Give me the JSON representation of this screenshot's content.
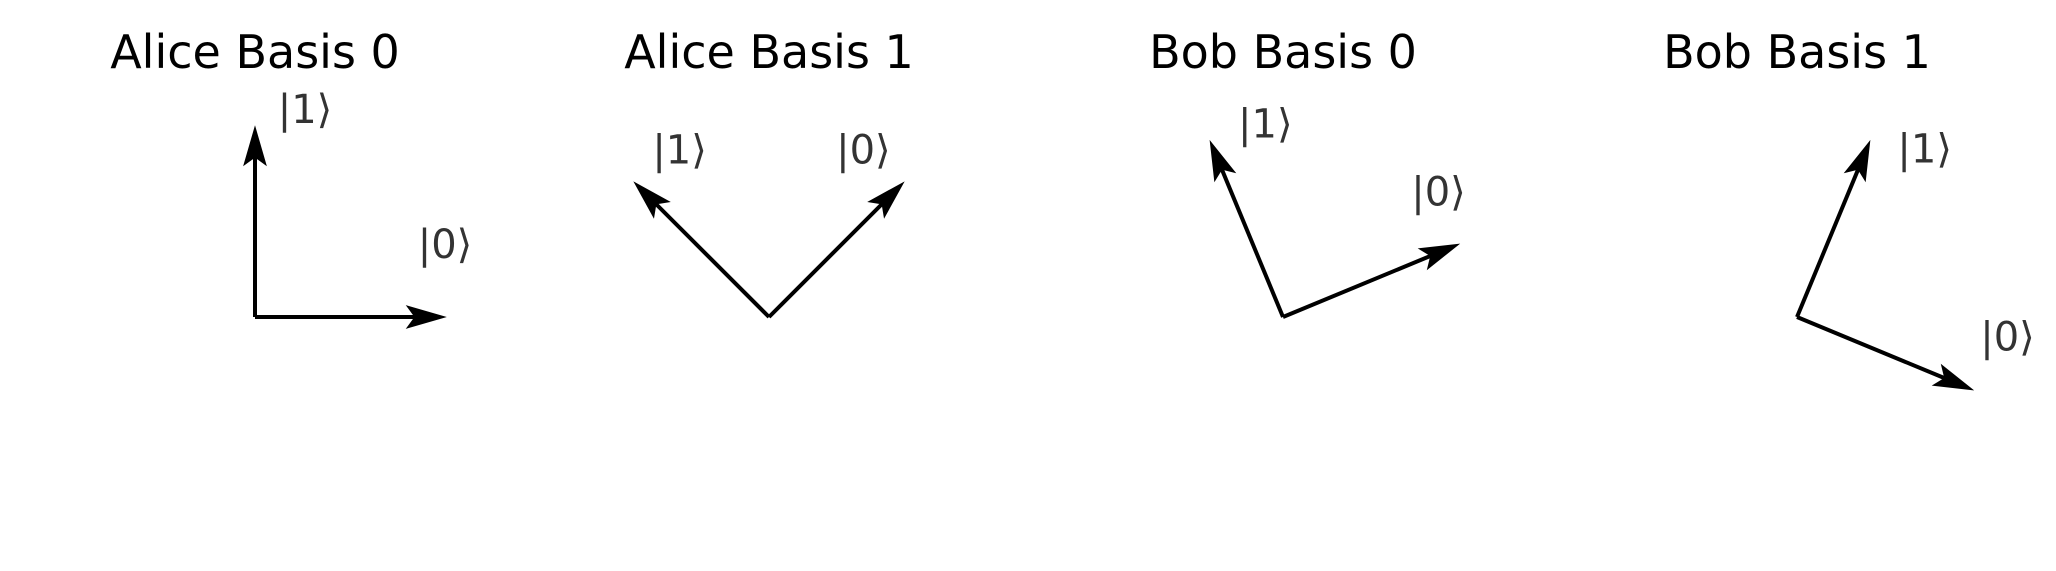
{
  "panels": [
    {
      "title": "Alice Basis 0",
      "vectors": [
        {
          "label": "|0⟩",
          "angle_deg": 0
        },
        {
          "label": "|1⟩",
          "angle_deg": 90
        }
      ]
    },
    {
      "title": "Alice Basis 1",
      "vectors": [
        {
          "label": "|0⟩",
          "angle_deg": 45
        },
        {
          "label": "|1⟩",
          "angle_deg": 135
        }
      ]
    },
    {
      "title": "Bob Basis 0",
      "vectors": [
        {
          "label": "|0⟩",
          "angle_deg": 22.5
        },
        {
          "label": "|1⟩",
          "angle_deg": 112.5
        }
      ]
    },
    {
      "title": "Bob Basis 1",
      "vectors": [
        {
          "label": "|0⟩",
          "angle_deg": -22.5
        },
        {
          "label": "|1⟩",
          "angle_deg": 67.5
        }
      ]
    }
  ],
  "colors": {
    "vector": "#000000",
    "label": "#333333",
    "title": "#000000"
  }
}
